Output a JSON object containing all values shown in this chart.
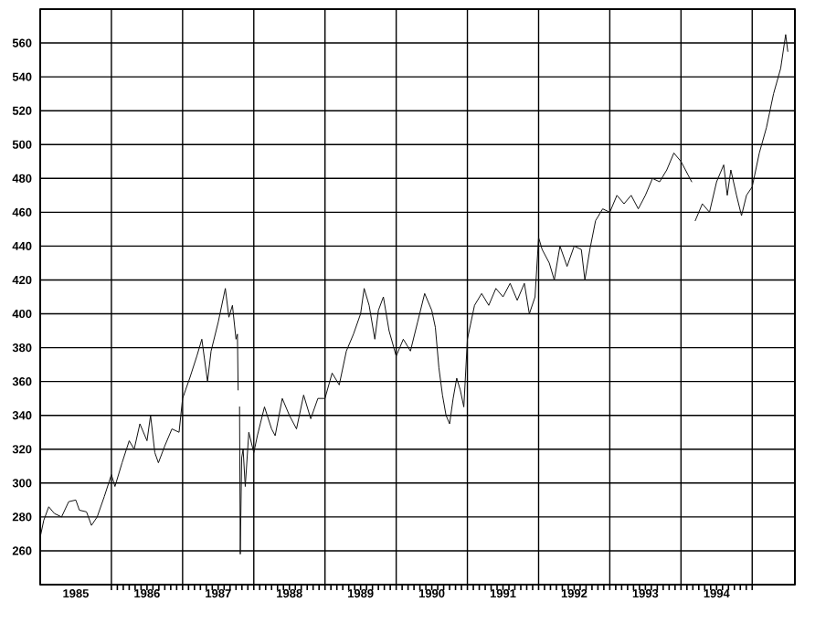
{
  "chart_data": {
    "type": "line",
    "grid": true,
    "xlim": [
      1985,
      1995.6
    ],
    "ylim": [
      240,
      580
    ],
    "xticks": [
      {
        "value": 1985.5,
        "label": "1985"
      },
      {
        "value": 1986,
        "label": null
      },
      {
        "value": 1986.5,
        "label": "1986"
      },
      {
        "value": 1987,
        "label": null
      },
      {
        "value": 1987.5,
        "label": "1987"
      },
      {
        "value": 1988,
        "label": null
      },
      {
        "value": 1988.5,
        "label": "1988"
      },
      {
        "value": 1989,
        "label": null
      },
      {
        "value": 1989.5,
        "label": "1989"
      },
      {
        "value": 1990,
        "label": null
      },
      {
        "value": 1990.5,
        "label": "1990"
      },
      {
        "value": 1991,
        "label": null
      },
      {
        "value": 1991.5,
        "label": "1991"
      },
      {
        "value": 1992,
        "label": null
      },
      {
        "value": 1992.5,
        "label": "1992"
      },
      {
        "value": 1993,
        "label": null
      },
      {
        "value": 1993.5,
        "label": "1993"
      },
      {
        "value": 1994,
        "label": null
      },
      {
        "value": 1994.5,
        "label": "1994"
      },
      {
        "value": 1995,
        "label": null
      }
    ],
    "yticks": [
      260,
      280,
      300,
      320,
      340,
      360,
      380,
      400,
      420,
      440,
      460,
      480,
      500,
      520,
      540,
      560
    ],
    "series": [
      {
        "color": "#111111",
        "x": [
          1985.0,
          1985.05,
          1985.12,
          1985.2,
          1985.3,
          1985.4,
          1985.5,
          1985.55,
          1985.65,
          1985.72,
          1985.8,
          1985.9,
          1986.0,
          1986.05,
          1986.15,
          1986.25,
          1986.32,
          1986.4,
          1986.5,
          1986.55,
          1986.61,
          1986.66,
          1986.75,
          1986.85,
          1986.95,
          1987.0,
          1987.1,
          1987.2,
          1987.27,
          1987.35,
          1987.4,
          1987.5,
          1987.6,
          1987.65,
          1987.7,
          1987.75,
          1987.77,
          1987.78,
          1987.79,
          1987.8,
          1987.81,
          1987.83,
          1987.85,
          1987.88,
          1987.93,
          1988.0,
          1988.05,
          1988.15,
          1988.25,
          1988.3,
          1988.4,
          1988.5,
          1988.6,
          1988.7,
          1988.8,
          1988.9,
          1989.0,
          1989.1,
          1989.2,
          1989.3,
          1989.4,
          1989.5,
          1989.55,
          1989.62,
          1989.7,
          1989.75,
          1989.82,
          1989.9,
          1990.0,
          1990.1,
          1990.2,
          1990.3,
          1990.4,
          1990.5,
          1990.55,
          1990.6,
          1990.65,
          1990.7,
          1990.75,
          1990.8,
          1990.85,
          1990.9,
          1990.95,
          1991.0,
          1991.1,
          1991.2,
          1991.3,
          1991.4,
          1991.5,
          1991.6,
          1991.7,
          1991.8,
          1991.87,
          1991.95,
          1992.0,
          1992.05,
          1992.15,
          1992.22,
          1992.3,
          1992.4,
          1992.5,
          1992.6,
          1992.65,
          1992.72,
          1992.8,
          1992.9,
          1993.0,
          1993.1,
          1993.2,
          1993.3,
          1993.4,
          1993.5,
          1993.6,
          1993.7,
          1993.8,
          1993.9,
          1994.0,
          1994.1,
          1994.15,
          1994.17,
          1994.2,
          1994.3,
          1994.4,
          1994.5,
          1994.6,
          1994.65,
          1994.7,
          1994.78,
          1994.85,
          1994.92,
          1995.0,
          1995.1,
          1995.2,
          1995.3,
          1995.4,
          1995.47,
          1995.5
        ],
        "values": [
          268,
          278,
          286,
          282,
          280,
          289,
          290,
          284,
          283,
          275,
          280,
          292,
          305,
          298,
          312,
          325,
          320,
          335,
          325,
          340,
          318,
          312,
          322,
          332,
          330,
          350,
          362,
          375,
          385,
          360,
          378,
          395,
          415,
          398,
          405,
          385,
          388,
          355,
          null,
          345,
          258,
          315,
          320,
          298,
          330,
          318,
          328,
          345,
          332,
          328,
          350,
          340,
          332,
          352,
          338,
          350,
          350,
          365,
          358,
          378,
          388,
          400,
          415,
          405,
          385,
          402,
          410,
          390,
          375,
          385,
          378,
          395,
          412,
          402,
          392,
          368,
          352,
          340,
          335,
          350,
          362,
          355,
          345,
          385,
          405,
          412,
          405,
          415,
          410,
          418,
          408,
          418,
          400,
          410,
          445,
          438,
          430,
          420,
          440,
          428,
          440,
          438,
          420,
          438,
          455,
          462,
          460,
          470,
          465,
          470,
          462,
          470,
          480,
          478,
          485,
          495,
          490,
          482,
          478,
          null,
          455,
          465,
          460,
          478,
          488,
          470,
          485,
          470,
          458,
          470,
          475,
          495,
          510,
          530,
          545,
          565,
          555
        ]
      }
    ]
  }
}
